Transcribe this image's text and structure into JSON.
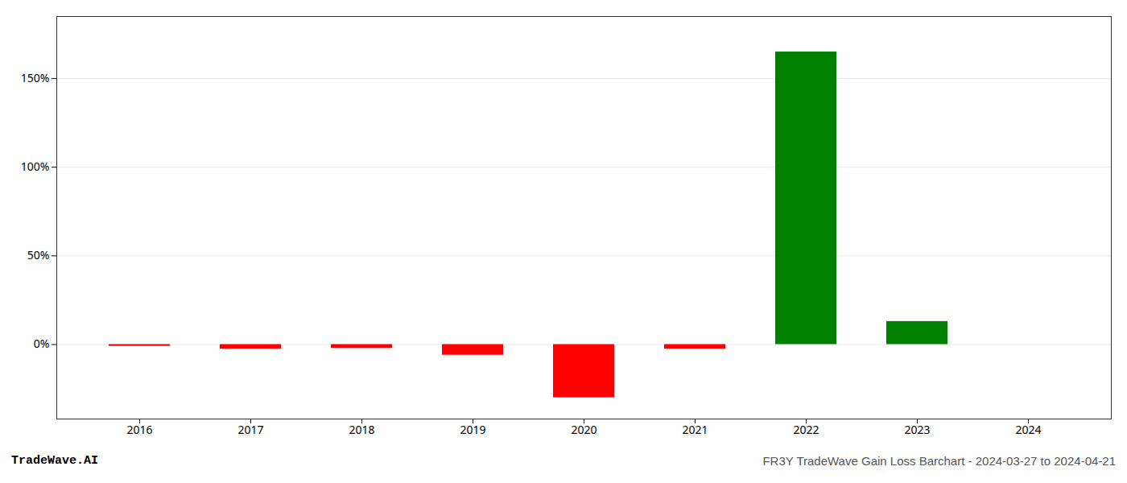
{
  "chart_data": {
    "type": "bar",
    "categories": [
      "2016",
      "2017",
      "2018",
      "2019",
      "2020",
      "2021",
      "2022",
      "2023",
      "2024"
    ],
    "values": [
      -1.0,
      -2.5,
      -2.2,
      -6.0,
      -30.0,
      -2.5,
      165.0,
      13.0,
      0.0
    ],
    "colors": [
      "#ff0000",
      "#ff0000",
      "#ff0000",
      "#ff0000",
      "#ff0000",
      "#ff0000",
      "#008000",
      "#008000",
      "#008000"
    ],
    "ylim": [
      -42,
      185
    ],
    "yticks": [
      {
        "value": 0,
        "label": "0%"
      },
      {
        "value": 50,
        "label": "50%"
      },
      {
        "value": 100,
        "label": "100%"
      },
      {
        "value": 150,
        "label": "150%"
      }
    ],
    "grid": true,
    "annotations": [
      "TradeWave.AI",
      "FR3Y TradeWave Gain Loss Barchart - 2024-03-27 to 2024-04-21"
    ]
  }
}
